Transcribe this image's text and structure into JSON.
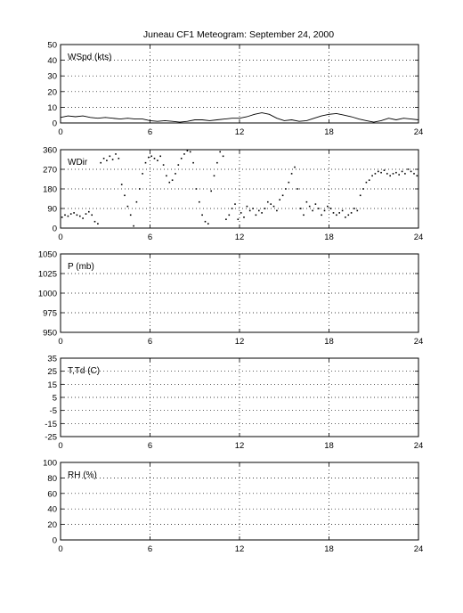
{
  "title": "Juneau CF1 Meteogram: September 24, 2000",
  "chart_data": [
    {
      "type": "line",
      "label": "WSpd (kts)",
      "xlim": [
        0,
        24
      ],
      "ylim": [
        0,
        50
      ],
      "x_ticks": [
        "0",
        "6",
        "12",
        "18",
        "24"
      ],
      "y_ticks": [
        "0",
        "10",
        "20",
        "30",
        "40",
        "50"
      ],
      "grid": true,
      "x": [
        0,
        0.5,
        1,
        1.5,
        2,
        2.5,
        3,
        3.5,
        4,
        4.5,
        5,
        5.5,
        6,
        6.5,
        7,
        7.5,
        8,
        8.5,
        9,
        9.5,
        10,
        10.5,
        11,
        11.5,
        12,
        12.5,
        13,
        13.5,
        14,
        14.5,
        15,
        15.5,
        16,
        16.5,
        17,
        17.5,
        18,
        18.5,
        19,
        19.5,
        20,
        20.5,
        21,
        21.5,
        22,
        22.5,
        23,
        23.5,
        24
      ],
      "values": [
        3.5,
        4.5,
        4,
        4.5,
        3.5,
        3,
        3.5,
        3,
        2.5,
        3,
        2.5,
        2.5,
        1.5,
        1,
        1.5,
        1,
        0.5,
        1,
        2,
        2,
        1.5,
        2,
        2.5,
        3,
        3,
        4,
        5.5,
        6.5,
        5.5,
        3,
        1.5,
        2,
        1,
        1.5,
        3,
        4.5,
        5.5,
        6,
        5,
        4,
        2.5,
        1.5,
        0.5,
        1.5,
        3,
        2,
        3,
        2.5,
        2
      ]
    },
    {
      "type": "scatter",
      "label": "WDir",
      "xlim": [
        0,
        24
      ],
      "ylim": [
        0,
        360
      ],
      "x_ticks": [
        "0",
        "6",
        "12",
        "18",
        "24"
      ],
      "y_ticks": [
        "0",
        "90",
        "180",
        "270",
        "360"
      ],
      "grid": true,
      "x": [
        0.1,
        0.3,
        0.5,
        0.7,
        0.9,
        1.1,
        1.3,
        1.5,
        1.7,
        1.9,
        2.1,
        2.3,
        2.5,
        2.7,
        2.9,
        3.1,
        3.3,
        3.5,
        3.7,
        3.9,
        4.1,
        4.3,
        4.5,
        4.7,
        4.9,
        5.1,
        5.3,
        5.5,
        5.7,
        5.9,
        6.1,
        6.3,
        6.5,
        6.7,
        6.9,
        7.1,
        7.3,
        7.5,
        7.7,
        7.9,
        8.1,
        8.3,
        8.5,
        8.7,
        8.9,
        9.1,
        9.3,
        9.5,
        9.7,
        9.9,
        10.1,
        10.3,
        10.5,
        10.7,
        10.9,
        11.1,
        11.3,
        11.5,
        11.7,
        11.9,
        12.1,
        12.3,
        12.5,
        12.7,
        12.9,
        13.1,
        13.3,
        13.5,
        13.7,
        13.9,
        14.1,
        14.3,
        14.5,
        14.7,
        14.9,
        15.1,
        15.3,
        15.5,
        15.7,
        15.9,
        16.1,
        16.3,
        16.5,
        16.7,
        16.9,
        17.1,
        17.3,
        17.5,
        17.7,
        17.9,
        18.1,
        18.3,
        18.5,
        18.7,
        18.9,
        19.1,
        19.3,
        19.5,
        19.7,
        19.9,
        20.1,
        20.3,
        20.5,
        20.7,
        20.9,
        21.1,
        21.3,
        21.5,
        21.7,
        21.9,
        22.1,
        22.3,
        22.5,
        22.7,
        22.9,
        23.1,
        23.3,
        23.5,
        23.7,
        23.9
      ],
      "values": [
        50,
        60,
        55,
        65,
        70,
        60,
        55,
        45,
        65,
        75,
        60,
        30,
        20,
        300,
        320,
        310,
        330,
        315,
        340,
        320,
        200,
        150,
        100,
        60,
        10,
        120,
        180,
        250,
        300,
        325,
        330,
        320,
        310,
        330,
        290,
        240,
        210,
        220,
        250,
        290,
        320,
        340,
        355,
        350,
        300,
        180,
        120,
        60,
        30,
        20,
        170,
        240,
        300,
        350,
        330,
        40,
        60,
        90,
        110,
        40,
        70,
        50,
        100,
        80,
        90,
        60,
        80,
        70,
        90,
        120,
        110,
        100,
        80,
        130,
        150,
        180,
        210,
        250,
        280,
        180,
        90,
        60,
        120,
        100,
        80,
        110,
        90,
        60,
        80,
        100,
        90,
        70,
        60,
        70,
        80,
        50,
        60,
        70,
        90,
        80,
        150,
        180,
        210,
        220,
        240,
        250,
        260,
        255,
        265,
        250,
        240,
        250,
        255,
        245,
        260,
        250,
        270,
        260,
        250,
        240
      ]
    },
    {
      "type": "line",
      "label": "P (mb)",
      "xlim": [
        0,
        24
      ],
      "ylim": [
        950,
        1050
      ],
      "x_ticks": [
        "0",
        "6",
        "12",
        "18",
        "24"
      ],
      "y_ticks": [
        "950",
        "975",
        "1000",
        "1025",
        "1050"
      ],
      "grid": true
    },
    {
      "type": "line",
      "label": "T,Td (C)",
      "xlim": [
        0,
        24
      ],
      "ylim": [
        -25,
        35
      ],
      "x_ticks": [
        "0",
        "6",
        "12",
        "18",
        "24"
      ],
      "y_ticks": [
        "-25",
        "-15",
        "-5",
        "5",
        "15",
        "25",
        "35"
      ],
      "y_ticks_numeric": [
        -25,
        -15,
        -5,
        5,
        15,
        25,
        35
      ],
      "grid": true
    },
    {
      "type": "line",
      "label": "RH (%)",
      "xlim": [
        0,
        24
      ],
      "ylim": [
        0,
        100
      ],
      "x_ticks": [
        "0",
        "6",
        "12",
        "18",
        "24"
      ],
      "y_ticks": [
        "0",
        "20",
        "40",
        "60",
        "80",
        "100"
      ],
      "grid": true
    }
  ]
}
